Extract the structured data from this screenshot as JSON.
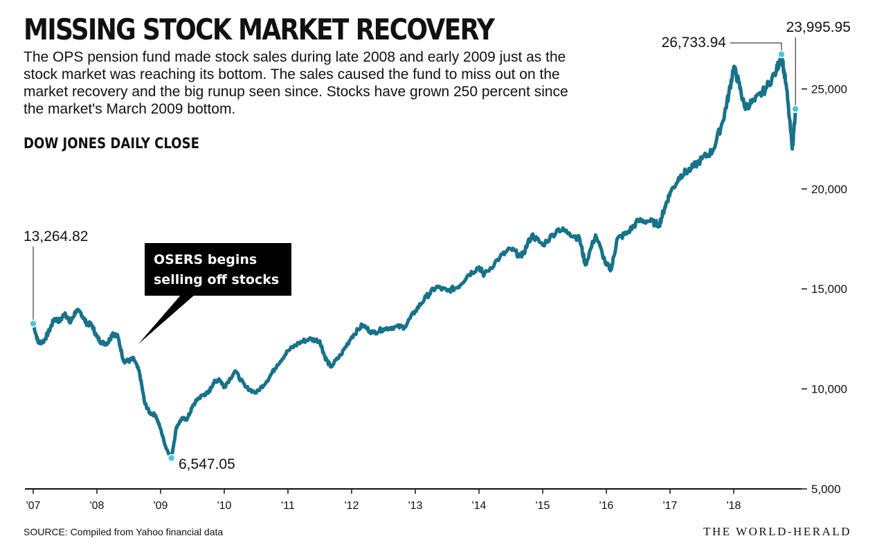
{
  "header": {
    "title": "MISSING STOCK MARKET RECOVERY",
    "subtitle": "The OPS pension fund made stock sales during late 2008 and early 2009 just as the stock market was reaching its bottom. The sales caused the fund to miss out on the market recovery and the big runup seen since. Stocks have grown 250 percent since the market's March 2009 bottom."
  },
  "footer": {
    "source": "SOURCE: Compiled from Yahoo financial data",
    "publisher": "THE WORLD-HERALD"
  },
  "colors": {
    "line": "#17728a",
    "marker": "#4fc3e4",
    "annotation_box": "#000000",
    "text": "#111111"
  },
  "chart_data": {
    "type": "line",
    "title": "DOW JONES DAILY CLOSE",
    "xlabel": "",
    "ylabel": "",
    "xlim": [
      2007.0,
      2019.0
    ],
    "ylim": [
      5000,
      28000
    ],
    "x_ticks": [
      2007,
      2008,
      2009,
      2010,
      2011,
      2012,
      2013,
      2014,
      2015,
      2016,
      2017,
      2018
    ],
    "x_tick_labels": [
      "'07",
      "'08",
      "'09",
      "'10",
      "'11",
      "'12",
      "'13",
      "'14",
      "'15",
      "'16",
      "'17",
      "'18"
    ],
    "y_ticks": [
      5000,
      10000,
      15000,
      20000,
      25000
    ],
    "y_tick_labels": [
      "5,000",
      "10,000",
      "15,000",
      "20,000",
      "25,000"
    ],
    "y_axis_position": "right",
    "grid": false,
    "legend": "none",
    "series": [
      {
        "values_note": "approximate month-end closes read from the plotted line",
        "x": [
          2007.0,
          2007.08,
          2007.17,
          2007.25,
          2007.33,
          2007.42,
          2007.5,
          2007.58,
          2007.67,
          2007.75,
          2007.83,
          2007.92,
          2008.0,
          2008.08,
          2008.17,
          2008.25,
          2008.33,
          2008.42,
          2008.5,
          2008.58,
          2008.67,
          2008.75,
          2008.83,
          2008.92,
          2009.0,
          2009.08,
          2009.17,
          2009.25,
          2009.33,
          2009.42,
          2009.5,
          2009.58,
          2009.67,
          2009.75,
          2009.83,
          2009.92,
          2010.0,
          2010.17,
          2010.33,
          2010.5,
          2010.67,
          2010.83,
          2011.0,
          2011.17,
          2011.33,
          2011.5,
          2011.58,
          2011.67,
          2011.83,
          2012.0,
          2012.17,
          2012.33,
          2012.5,
          2012.67,
          2012.83,
          2013.0,
          2013.17,
          2013.33,
          2013.5,
          2013.67,
          2013.83,
          2014.0,
          2014.08,
          2014.33,
          2014.5,
          2014.67,
          2014.83,
          2015.0,
          2015.25,
          2015.42,
          2015.58,
          2015.67,
          2015.83,
          2016.0,
          2016.08,
          2016.17,
          2016.33,
          2016.5,
          2016.67,
          2016.83,
          2016.92,
          2017.0,
          2017.17,
          2017.33,
          2017.5,
          2017.67,
          2017.83,
          2017.92,
          2018.0,
          2018.08,
          2018.17,
          2018.33,
          2018.5,
          2018.67,
          2018.75,
          2018.83,
          2018.92,
          2018.97
        ],
        "values": [
          13264.82,
          12300,
          12400,
          12900,
          13500,
          13400,
          13800,
          13300,
          13900,
          13800,
          13300,
          13200,
          12600,
          12300,
          12300,
          12800,
          12600,
          11400,
          11400,
          11500,
          10800,
          9300,
          8800,
          8700,
          8000,
          7100,
          6547.05,
          8100,
          8500,
          8500,
          9100,
          9500,
          9700,
          9800,
          10300,
          10500,
          10100,
          10900,
          10100,
          9800,
          10400,
          11200,
          11900,
          12300,
          12500,
          12400,
          11600,
          11100,
          11700,
          12600,
          13200,
          12800,
          13000,
          13100,
          13100,
          13900,
          14600,
          15100,
          14900,
          15100,
          15700,
          16100,
          15700,
          16600,
          17000,
          16600,
          17700,
          17200,
          18000,
          17800,
          17500,
          16200,
          17700,
          16200,
          16000,
          17500,
          17800,
          18400,
          18400,
          18200,
          19100,
          19800,
          20700,
          21000,
          21500,
          21900,
          23400,
          24700,
          26100,
          25300,
          24100,
          24400,
          25000,
          25900,
          26733.94,
          25000,
          22000,
          23995.95
        ]
      }
    ],
    "annotations": [
      {
        "label": "13,264.82",
        "x": 2007.0,
        "y": 13264.82
      },
      {
        "label": "6,547.05",
        "x": 2009.17,
        "y": 6547.05
      },
      {
        "label": "26,733.94",
        "x": 2018.75,
        "y": 26733.94
      },
      {
        "label": "23,995.95",
        "x": 2018.97,
        "y": 23995.95
      }
    ],
    "callout": {
      "text": [
        "OSERS begins",
        "selling off stocks"
      ],
      "x": 2008.67
    }
  }
}
